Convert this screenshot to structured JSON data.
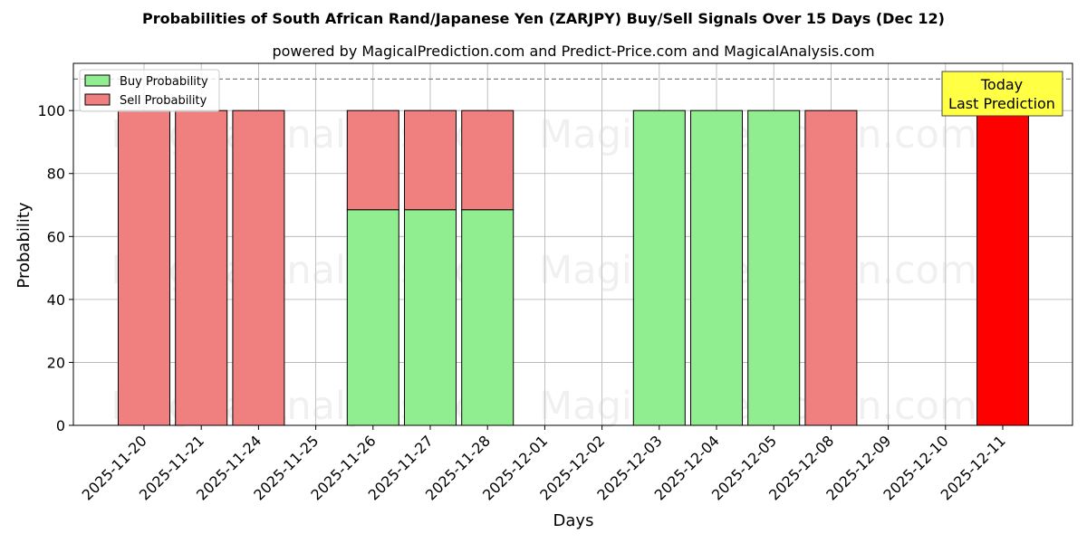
{
  "chart_data": {
    "type": "bar",
    "title": "Probabilities of South African Rand/Japanese Yen (ZARJPY) Buy/Sell Signals Over 15 Days (Dec 12)",
    "subtitle": "powered by MagicalPrediction.com and Predict-Price.com and MagicalAnalysis.com",
    "xlabel": "Days",
    "ylabel": "Probability",
    "ylim": [
      0,
      115
    ],
    "yticks": [
      0,
      20,
      40,
      60,
      80,
      100
    ],
    "grid": true,
    "legend_position": "top-left",
    "reference_line": 110,
    "categories": [
      "2025-11-20",
      "2025-11-21",
      "2025-11-24",
      "2025-11-25",
      "2025-11-26",
      "2025-11-27",
      "2025-11-28",
      "2025-12-01",
      "2025-12-02",
      "2025-12-03",
      "2025-12-04",
      "2025-12-05",
      "2025-12-08",
      "2025-12-09",
      "2025-12-10",
      "2025-12-11"
    ],
    "series": [
      {
        "name": "Buy Probability",
        "color": "#90ee90",
        "values": [
          0,
          0,
          0,
          null,
          68.5,
          68.5,
          68.5,
          null,
          null,
          100,
          100,
          100,
          0,
          null,
          null,
          0
        ]
      },
      {
        "name": "Sell Probability",
        "color": "#f08080",
        "values": [
          100,
          100,
          100,
          null,
          31.5,
          31.5,
          31.5,
          null,
          null,
          0,
          0,
          0,
          100,
          null,
          null,
          100
        ]
      }
    ],
    "highlight": {
      "index": 15,
      "color": "#ff0000"
    },
    "annotation": {
      "lines": [
        "Today",
        "Last Prediction"
      ],
      "color": "#ffff44"
    },
    "watermarks": [
      "MagicalAnalysis.com",
      "MagicalPrediction.com"
    ]
  }
}
